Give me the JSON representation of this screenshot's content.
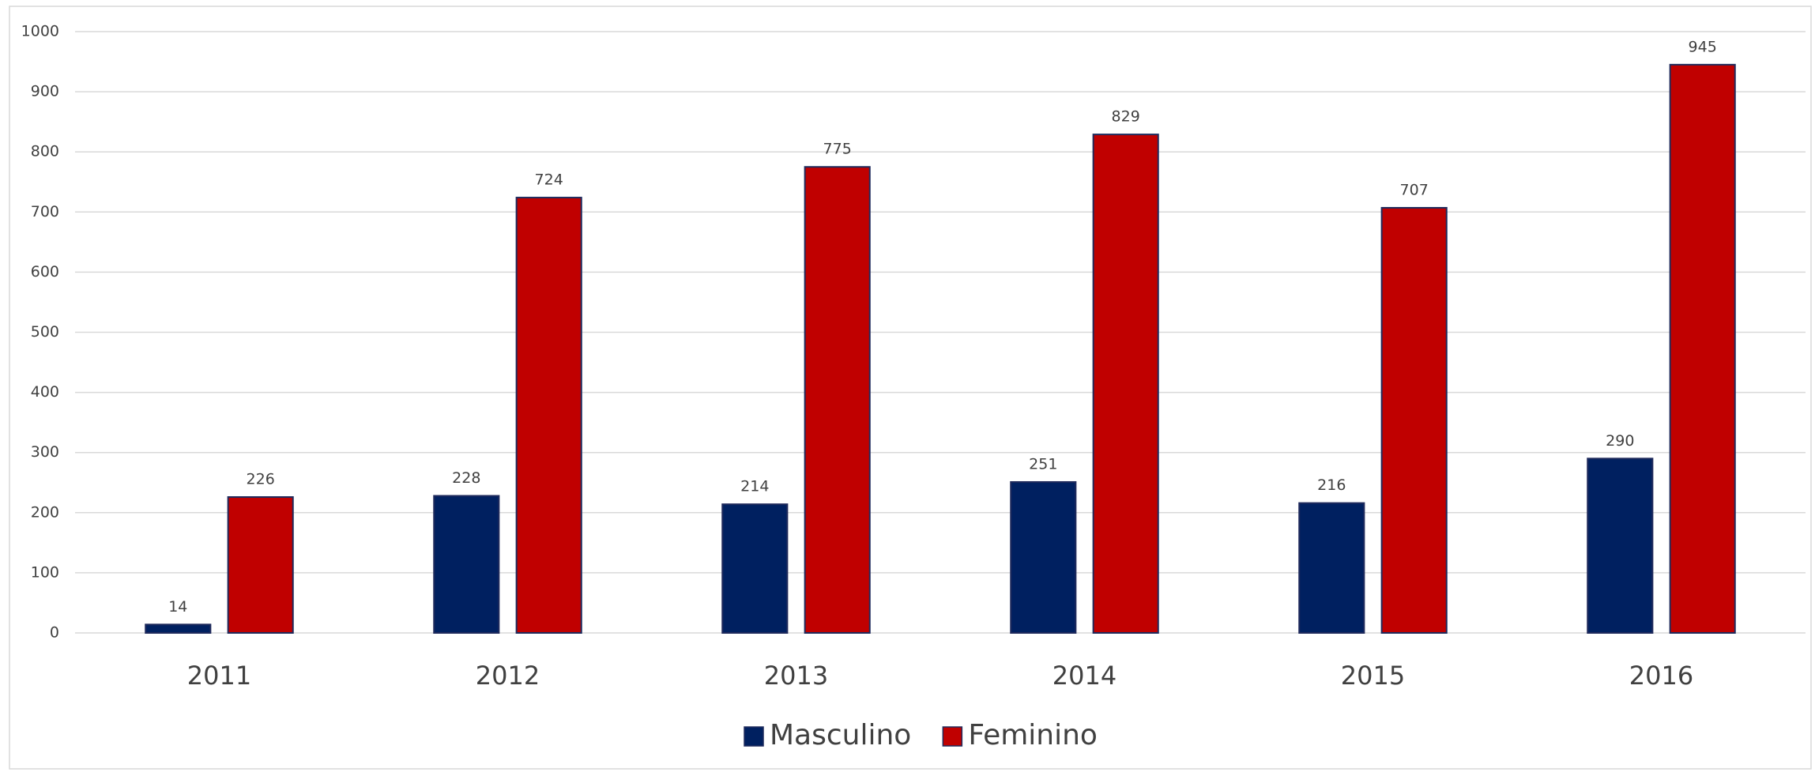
{
  "chart_data": {
    "type": "bar",
    "categories": [
      "2011",
      "2012",
      "2013",
      "2014",
      "2015",
      "2016"
    ],
    "series": [
      {
        "name": "Masculino",
        "color": "#002060",
        "values": [
          14,
          228,
          214,
          251,
          216,
          290
        ]
      },
      {
        "name": "Feminino",
        "color": "#c00000",
        "values": [
          226,
          724,
          775,
          829,
          707,
          945
        ]
      }
    ],
    "ylim": [
      0,
      1000
    ],
    "yticks": [
      0,
      100,
      200,
      300,
      400,
      500,
      600,
      700,
      800,
      900,
      1000
    ],
    "grid": true,
    "legend": "bottom"
  }
}
